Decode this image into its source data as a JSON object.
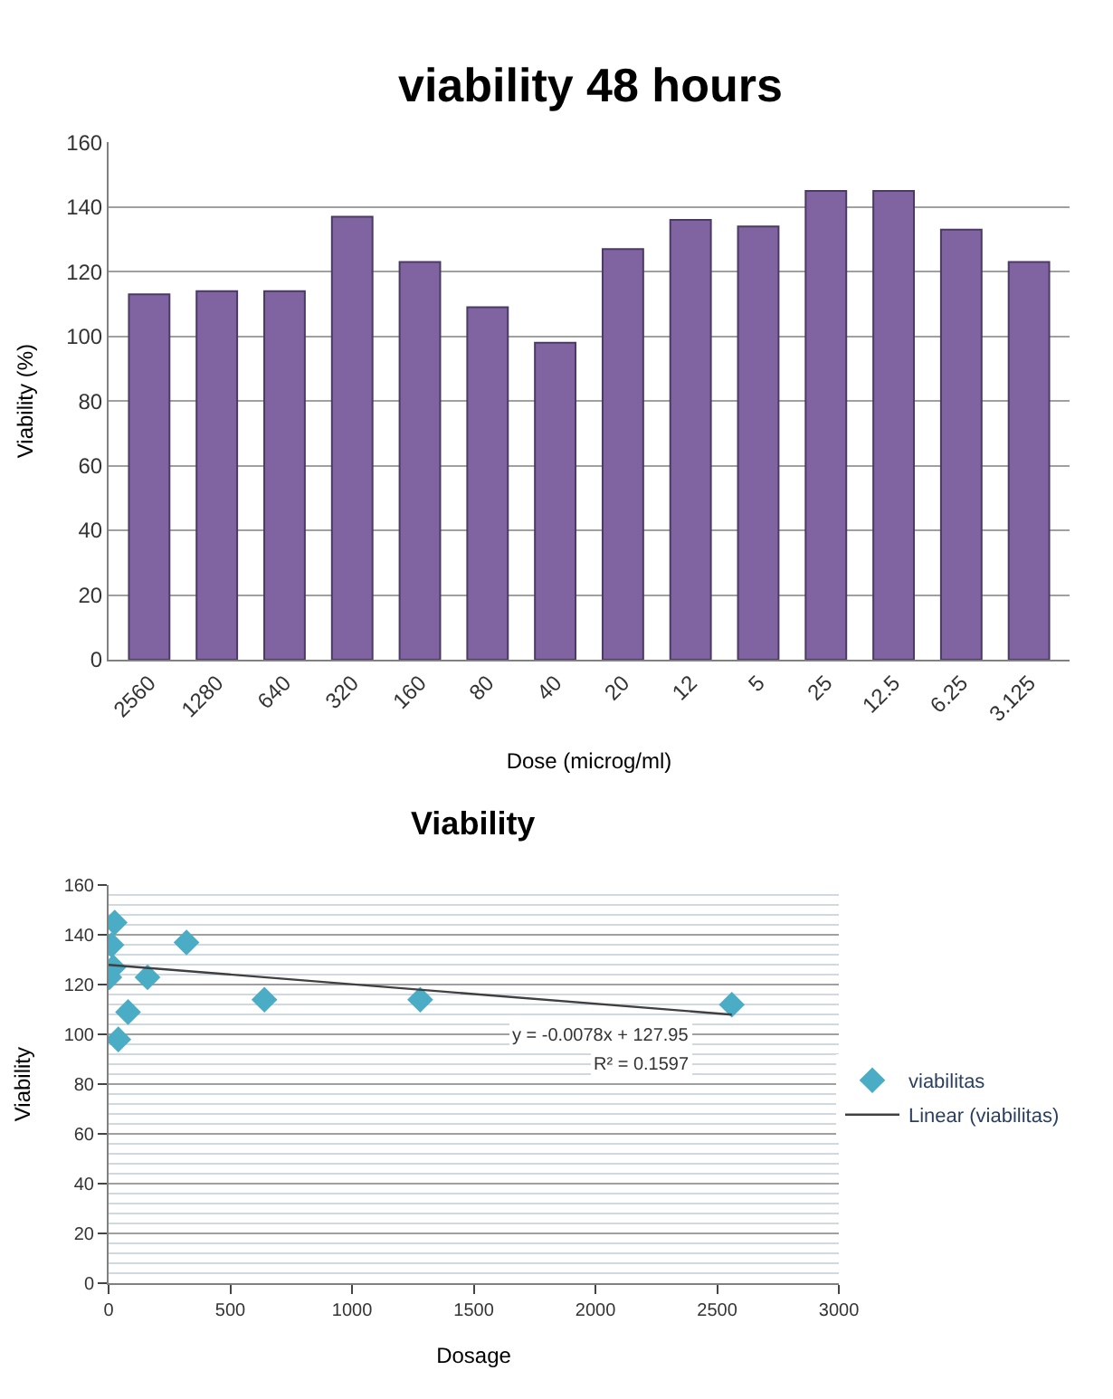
{
  "chart_data": [
    {
      "type": "bar",
      "title": "viability 48 hours",
      "xlabel": "Dose (microg/ml)",
      "ylabel": "Viability (%)",
      "categories": [
        "2560",
        "1280",
        "640",
        "320",
        "160",
        "80",
        "40",
        "20",
        "12",
        "5",
        "25",
        "12.5",
        "6.25",
        "3.125"
      ],
      "series": [
        {
          "color": "#8064a2",
          "values": [
            113,
            114,
            114,
            137,
            123,
            109,
            98,
            127,
            136,
            134,
            145,
            145,
            133,
            123
          ]
        }
      ],
      "ylim": [
        0,
        160
      ],
      "yticks": [
        0,
        20,
        40,
        60,
        80,
        100,
        120,
        140,
        160
      ],
      "grid": "y",
      "legend": false
    },
    {
      "type": "scatter",
      "title": "Viability",
      "xlabel": "Dosage",
      "ylabel": "Viability",
      "series": [
        {
          "name": "viabilitas",
          "type": "scatter",
          "marker": "diamond",
          "color": "#4bacc6",
          "x": [
            2560,
            1280,
            640,
            320,
            160,
            80,
            40,
            20,
            12,
            25,
            3.125
          ],
          "values": [
            112,
            114,
            114,
            137,
            123,
            109,
            98,
            127,
            136,
            145,
            123
          ]
        },
        {
          "name": "Linear (viabilitas)",
          "type": "line",
          "marker": "none",
          "color": "#404040",
          "x": [
            0,
            2560
          ],
          "values": [
            128,
            108
          ]
        }
      ],
      "annotations": [
        "y = -0.0078x + 127.95",
        "R² = 0.1597"
      ],
      "xlim": [
        0,
        3000
      ],
      "xticks": [
        0,
        500,
        1000,
        1500,
        2000,
        2500,
        3000
      ],
      "ylim": [
        0,
        160
      ],
      "yticks": [
        0,
        20,
        40,
        60,
        80,
        100,
        120,
        140,
        160
      ],
      "grid": "y",
      "legend": "right"
    }
  ]
}
